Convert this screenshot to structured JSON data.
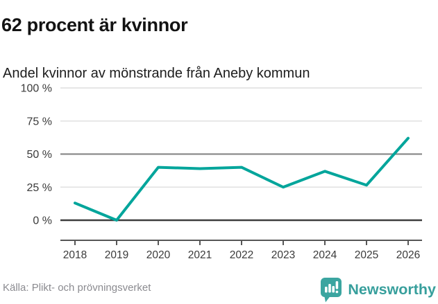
{
  "chart_data": {
    "type": "line",
    "title": "62 procent är kvinnor",
    "subtitle": "Andel kvinnor av mönstrande från Aneby kommun",
    "x": [
      2018,
      2019,
      2020,
      2021,
      2022,
      2023,
      2024,
      2025,
      2026
    ],
    "series": [
      {
        "name": "Andel kvinnor av mönstrande",
        "values": [
          13,
          0,
          40,
          39,
          40,
          25,
          37,
          26.5,
          62
        ]
      }
    ],
    "ylim": [
      0,
      100
    ],
    "yticks": [
      {
        "value": 0,
        "label": "0 %",
        "line": "zero"
      },
      {
        "value": 25,
        "label": "25 %",
        "line": "default"
      },
      {
        "value": 50,
        "label": "50 %",
        "line": "mid"
      },
      {
        "value": 75,
        "label": "75 %",
        "line": "default"
      },
      {
        "value": 100,
        "label": "100 %",
        "line": "default"
      }
    ],
    "grid": true,
    "legend": "none",
    "line_color": "#00a59b",
    "grid_colors": {
      "default": "#e3e3e3",
      "mid": "#8c8c8c",
      "zero": "#3d3d3d"
    },
    "axis_color": "#565656",
    "tick_label_color": "#3a3a3a",
    "source": "Källa: Plikt- och prövningsverket"
  },
  "branding": {
    "logo_text": "Newsworthy",
    "logo_color": "#3ba5a0",
    "logo_icon": "bar-chart-speech-bubble-icon"
  }
}
